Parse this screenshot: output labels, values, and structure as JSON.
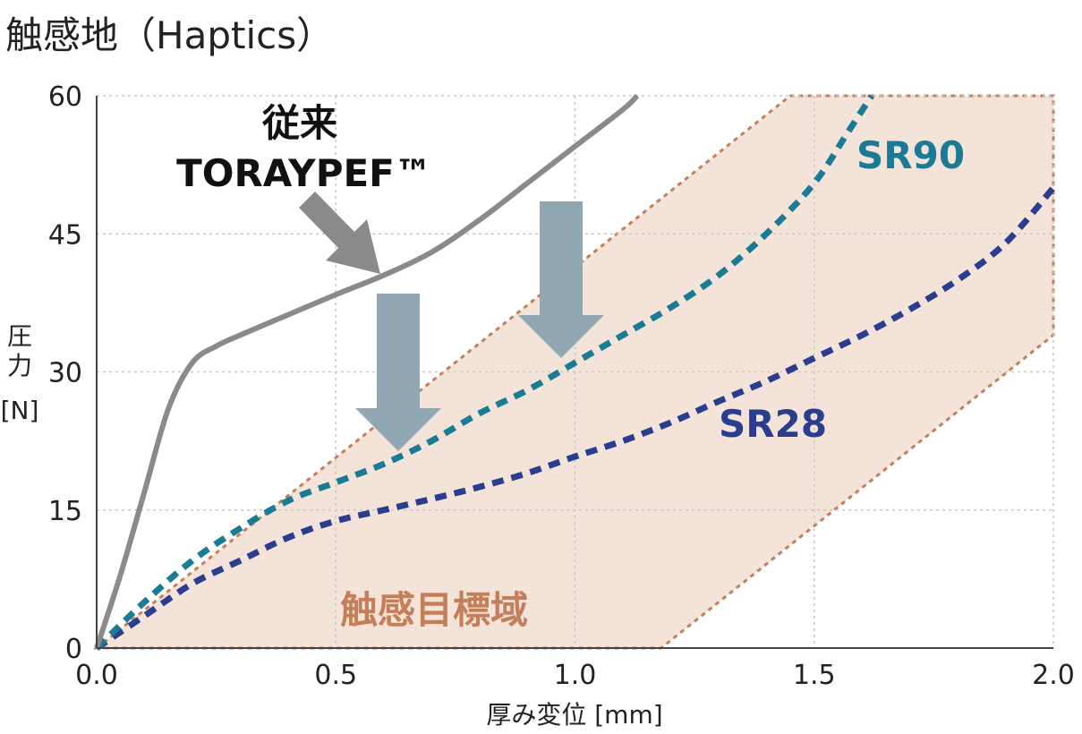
{
  "title": "触感地（Haptics）",
  "chart_data": {
    "type": "line",
    "title": "触感地（Haptics）",
    "xlabel": "厚み変位 [mm]",
    "ylabel_lines": [
      "圧",
      "力",
      "[N]"
    ],
    "xlim": [
      0,
      2.0
    ],
    "ylim": [
      0,
      60
    ],
    "x_ticks": [
      "0.0",
      "0.5",
      "1.0",
      "1.5",
      "2.0"
    ],
    "y_ticks": [
      "0",
      "15",
      "30",
      "45",
      "60"
    ],
    "grid": true,
    "series": [
      {
        "name": "従来 TORAYPEF™",
        "color": "#8a8a8a",
        "style": "solid",
        "points": [
          [
            0,
            0
          ],
          [
            0.05,
            8
          ],
          [
            0.1,
            17
          ],
          [
            0.15,
            26
          ],
          [
            0.2,
            31
          ],
          [
            0.25,
            32.8
          ],
          [
            0.3,
            34
          ],
          [
            0.4,
            36.2
          ],
          [
            0.5,
            38.4
          ],
          [
            0.6,
            40.5
          ],
          [
            0.7,
            43
          ],
          [
            0.8,
            46.5
          ],
          [
            0.9,
            50.5
          ],
          [
            1.0,
            54.5
          ],
          [
            1.1,
            58.5
          ],
          [
            1.13,
            60
          ]
        ]
      },
      {
        "name": "SR90",
        "color": "#1a7b96",
        "style": "dashed",
        "points": [
          [
            0,
            0
          ],
          [
            0.1,
            5
          ],
          [
            0.2,
            9.5
          ],
          [
            0.3,
            13
          ],
          [
            0.4,
            16
          ],
          [
            0.5,
            18
          ],
          [
            0.6,
            20
          ],
          [
            0.7,
            22.5
          ],
          [
            0.8,
            25.5
          ],
          [
            0.9,
            28
          ],
          [
            1.0,
            31
          ],
          [
            1.1,
            34
          ],
          [
            1.2,
            37
          ],
          [
            1.3,
            40.5
          ],
          [
            1.4,
            45
          ],
          [
            1.5,
            50.5
          ],
          [
            1.57,
            56
          ],
          [
            1.62,
            60
          ]
        ]
      },
      {
        "name": "SR28",
        "color": "#2b3d8f",
        "style": "dashed",
        "points": [
          [
            0,
            0
          ],
          [
            0.1,
            3.5
          ],
          [
            0.2,
            7
          ],
          [
            0.3,
            9.5
          ],
          [
            0.4,
            12
          ],
          [
            0.5,
            13.8
          ],
          [
            0.6,
            15
          ],
          [
            0.7,
            16.2
          ],
          [
            0.8,
            17.5
          ],
          [
            0.9,
            19
          ],
          [
            1.0,
            20.8
          ],
          [
            1.1,
            22.5
          ],
          [
            1.2,
            24.5
          ],
          [
            1.3,
            26.8
          ],
          [
            1.4,
            29
          ],
          [
            1.5,
            31.5
          ],
          [
            1.6,
            34
          ],
          [
            1.7,
            36.8
          ],
          [
            1.8,
            40
          ],
          [
            1.9,
            44
          ],
          [
            2.0,
            50
          ]
        ]
      }
    ],
    "target_region": {
      "label": "触感目標域",
      "fill": "#f4e3d9",
      "stroke": "#c47e58",
      "polygon": [
        [
          0,
          0
        ],
        [
          1.45,
          60
        ],
        [
          2.0,
          60
        ],
        [
          2.0,
          34
        ],
        [
          1.18,
          0
        ]
      ]
    },
    "annotations": [
      {
        "text_lines": [
          "従来",
          "TORAYPEF™"
        ]
      },
      {
        "text": "SR90"
      },
      {
        "text": "SR28"
      }
    ],
    "arrows": {
      "gray_pointer": {
        "color": "#8a8a8a"
      },
      "down_arrows": {
        "color": "#91a7b2"
      }
    }
  }
}
